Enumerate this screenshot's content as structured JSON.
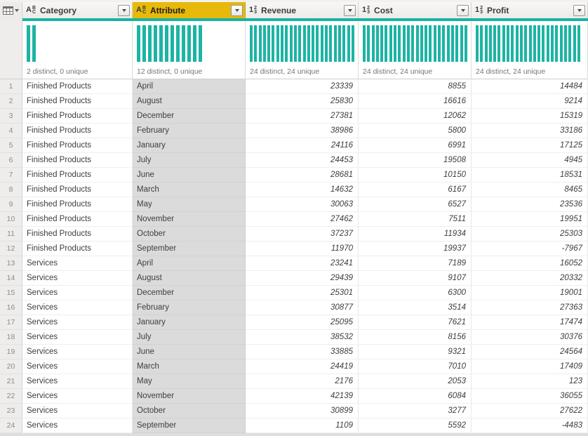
{
  "app_title": "Power Query data preview",
  "colors": {
    "accent_teal": "#18b2a3",
    "bar_teal": "#1cb4a4",
    "selected_header_yellow": "#e7b90a",
    "selected_cell_gray": "#dbdbdb"
  },
  "corner": {
    "icon": "table-grid-icon",
    "caret": "chevron-down-icon"
  },
  "columns": [
    {
      "id": "category",
      "label": "Category",
      "type": "text",
      "selected": false,
      "align": "left",
      "type_icon": {
        "name": "text-type-icon",
        "main": "A",
        "sup": "B",
        "sub": "C"
      },
      "filter_icon": "chevron-down-icon",
      "distribution": {
        "label": "2 distinct, 0 unique",
        "bar_count": 2,
        "bar_style": "wide"
      }
    },
    {
      "id": "attribute",
      "label": "Attribute",
      "type": "text",
      "selected": true,
      "align": "left",
      "type_icon": {
        "name": "text-type-icon",
        "main": "A",
        "sup": "B",
        "sub": "C"
      },
      "filter_icon": "chevron-down-icon",
      "distribution": {
        "label": "12 distinct, 0 unique",
        "bar_count": 12,
        "bar_style": "wide"
      }
    },
    {
      "id": "revenue",
      "label": "Revenue",
      "type": "number",
      "selected": false,
      "align": "right",
      "type_icon": {
        "name": "number-type-icon",
        "main": "1",
        "sup": "2",
        "sub": "3"
      },
      "filter_icon": "chevron-down-icon",
      "distribution": {
        "label": "24 distinct, 24 unique",
        "bar_count": 24,
        "bar_style": "narrow"
      }
    },
    {
      "id": "cost",
      "label": "Cost",
      "type": "number",
      "selected": false,
      "align": "right",
      "type_icon": {
        "name": "number-type-icon",
        "main": "1",
        "sup": "2",
        "sub": "3"
      },
      "filter_icon": "chevron-down-icon",
      "distribution": {
        "label": "24 distinct, 24 unique",
        "bar_count": 24,
        "bar_style": "narrow"
      }
    },
    {
      "id": "profit",
      "label": "Profit",
      "type": "number",
      "selected": false,
      "align": "right",
      "type_icon": {
        "name": "number-type-icon",
        "main": "1",
        "sup": "2",
        "sub": "3"
      },
      "filter_icon": "chevron-down-icon",
      "distribution": {
        "label": "24 distinct, 24 unique",
        "bar_count": 24,
        "bar_style": "narrow"
      }
    }
  ],
  "rows": [
    [
      "1",
      "Finished Products",
      "April",
      "23339",
      "8855",
      "14484"
    ],
    [
      "2",
      "Finished Products",
      "August",
      "25830",
      "16616",
      "9214"
    ],
    [
      "3",
      "Finished Products",
      "December",
      "27381",
      "12062",
      "15319"
    ],
    [
      "4",
      "Finished Products",
      "February",
      "38986",
      "5800",
      "33186"
    ],
    [
      "5",
      "Finished Products",
      "January",
      "24116",
      "6991",
      "17125"
    ],
    [
      "6",
      "Finished Products",
      "July",
      "24453",
      "19508",
      "4945"
    ],
    [
      "7",
      "Finished Products",
      "June",
      "28681",
      "10150",
      "18531"
    ],
    [
      "8",
      "Finished Products",
      "March",
      "14632",
      "6167",
      "8465"
    ],
    [
      "9",
      "Finished Products",
      "May",
      "30063",
      "6527",
      "23536"
    ],
    [
      "10",
      "Finished Products",
      "November",
      "27462",
      "7511",
      "19951"
    ],
    [
      "11",
      "Finished Products",
      "October",
      "37237",
      "11934",
      "25303"
    ],
    [
      "12",
      "Finished Products",
      "September",
      "11970",
      "19937",
      "-7967"
    ],
    [
      "13",
      "Services",
      "April",
      "23241",
      "7189",
      "16052"
    ],
    [
      "14",
      "Services",
      "August",
      "29439",
      "9107",
      "20332"
    ],
    [
      "15",
      "Services",
      "December",
      "25301",
      "6300",
      "19001"
    ],
    [
      "16",
      "Services",
      "February",
      "30877",
      "3514",
      "27363"
    ],
    [
      "17",
      "Services",
      "January",
      "25095",
      "7621",
      "17474"
    ],
    [
      "18",
      "Services",
      "July",
      "38532",
      "8156",
      "30376"
    ],
    [
      "19",
      "Services",
      "June",
      "33885",
      "9321",
      "24564"
    ],
    [
      "20",
      "Services",
      "March",
      "24419",
      "7010",
      "17409"
    ],
    [
      "21",
      "Services",
      "May",
      "2176",
      "2053",
      "123"
    ],
    [
      "22",
      "Services",
      "November",
      "42139",
      "6084",
      "36055"
    ],
    [
      "23",
      "Services",
      "October",
      "30899",
      "3277",
      "27622"
    ],
    [
      "24",
      "Services",
      "September",
      "1109",
      "5592",
      "-4483"
    ]
  ]
}
